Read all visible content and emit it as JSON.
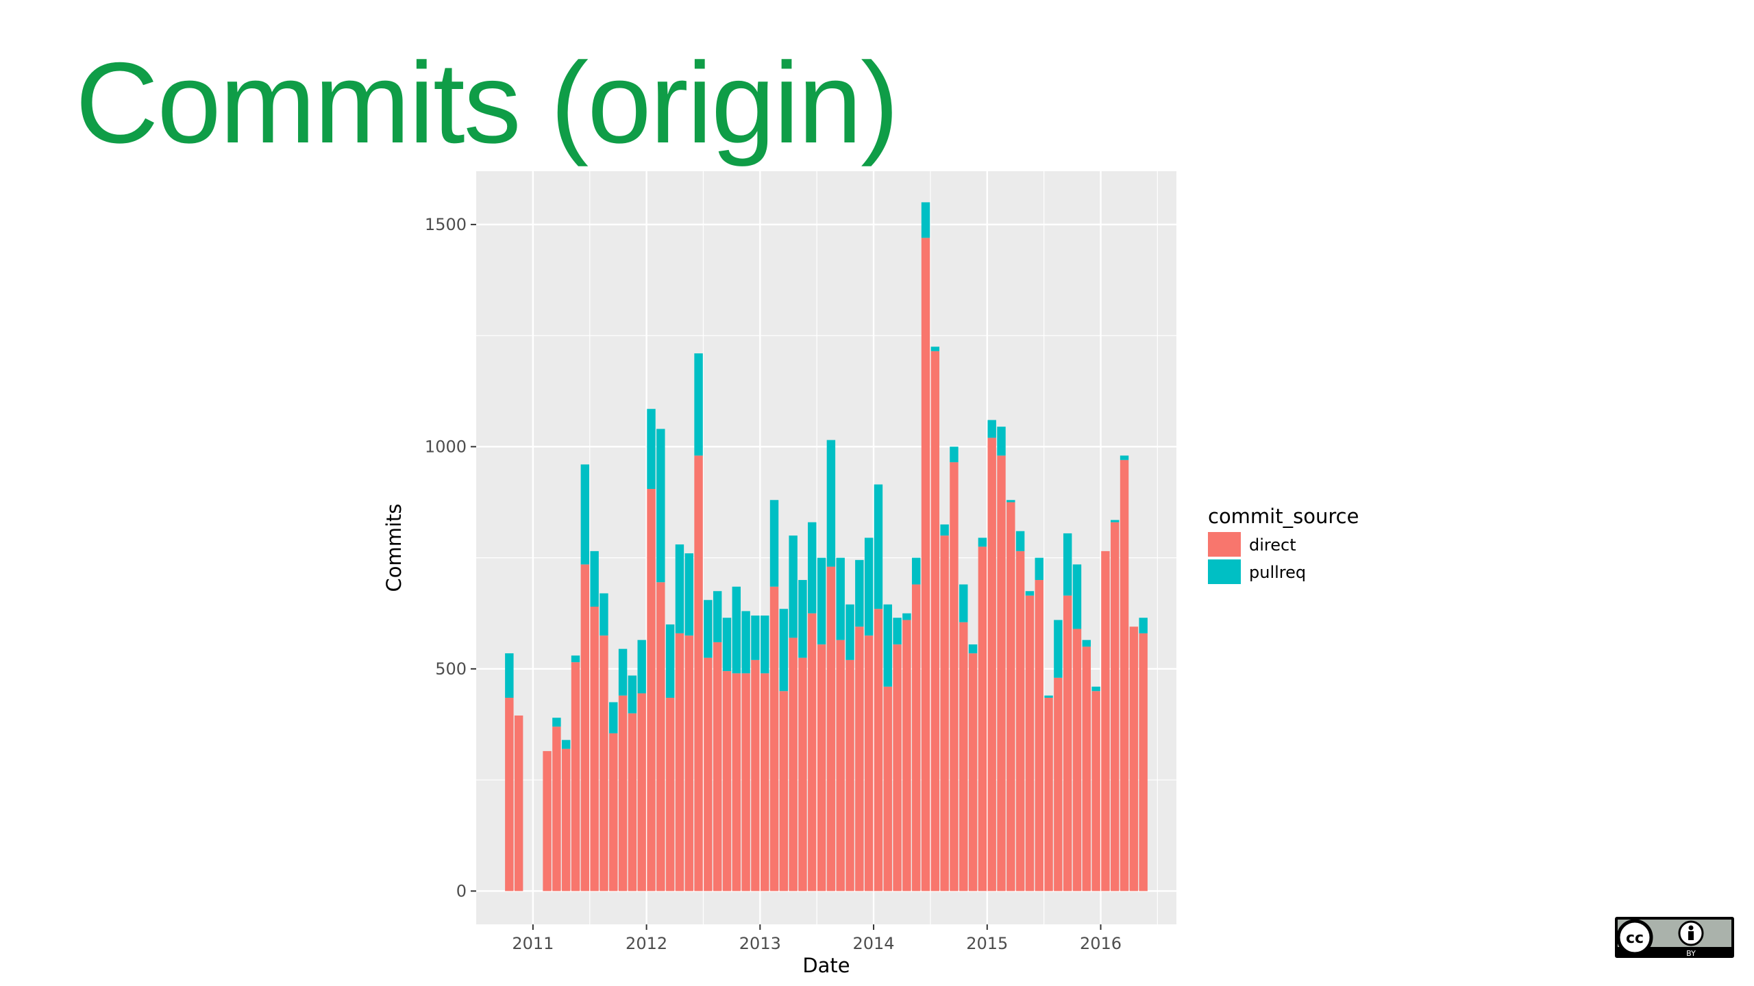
{
  "slide": {
    "title": "Commits (origin)",
    "title_color": "#0f9d47"
  },
  "chart_data": {
    "type": "bar",
    "stacked": true,
    "title": "",
    "xlabel": "Date",
    "ylabel": "Commits",
    "x_tick_labels": [
      "2011",
      "2012",
      "2013",
      "2014",
      "2015",
      "2016"
    ],
    "y_tick_labels": [
      "0",
      "500",
      "1000",
      "1500"
    ],
    "ylim": [
      -75,
      1620
    ],
    "xlim": [
      "2010-07",
      "2016-09"
    ],
    "grid": true,
    "panel_background": "#ebebeb",
    "legend": {
      "title": "commit_source",
      "position": "right"
    },
    "x": [
      "2010-10",
      "2010-11",
      "2011-02",
      "2011-03",
      "2011-04",
      "2011-05",
      "2011-06",
      "2011-07",
      "2011-08",
      "2011-09",
      "2011-10",
      "2011-11",
      "2011-12",
      "2012-01",
      "2012-02",
      "2012-03",
      "2012-04",
      "2012-05",
      "2012-06",
      "2012-07",
      "2012-08",
      "2012-09",
      "2012-10",
      "2012-11",
      "2012-12",
      "2013-01",
      "2013-02",
      "2013-03",
      "2013-04",
      "2013-05",
      "2013-06",
      "2013-07",
      "2013-08",
      "2013-09",
      "2013-10",
      "2013-11",
      "2013-12",
      "2014-01",
      "2014-02",
      "2014-03",
      "2014-04",
      "2014-05",
      "2014-06",
      "2014-07",
      "2014-08",
      "2014-09",
      "2014-10",
      "2014-11",
      "2014-12",
      "2015-01",
      "2015-02",
      "2015-03",
      "2015-04",
      "2015-05",
      "2015-06",
      "2015-07",
      "2015-08",
      "2015-09",
      "2015-10",
      "2015-11",
      "2015-12",
      "2016-01",
      "2016-02",
      "2016-03",
      "2016-04",
      "2016-05"
    ],
    "series": [
      {
        "name": "direct",
        "color": "#f8766d",
        "values": [
          435,
          395,
          315,
          370,
          320,
          515,
          735,
          640,
          575,
          355,
          440,
          400,
          445,
          905,
          695,
          435,
          580,
          575,
          980,
          525,
          560,
          495,
          490,
          490,
          520,
          490,
          685,
          450,
          570,
          525,
          625,
          555,
          730,
          565,
          520,
          595,
          575,
          635,
          460,
          555,
          610,
          690,
          1470,
          1215,
          800,
          965,
          605,
          535,
          775,
          1020,
          980,
          875,
          765,
          665,
          700,
          435,
          480,
          665,
          590,
          550,
          450,
          765,
          830,
          970,
          595,
          580
        ]
      },
      {
        "name": "pullreq",
        "color": "#00bfc4",
        "values": [
          100,
          0,
          0,
          20,
          20,
          15,
          225,
          125,
          95,
          70,
          105,
          85,
          120,
          180,
          345,
          165,
          200,
          185,
          230,
          130,
          115,
          120,
          195,
          140,
          100,
          130,
          195,
          185,
          230,
          175,
          205,
          195,
          285,
          185,
          125,
          150,
          220,
          280,
          185,
          60,
          15,
          60,
          80,
          10,
          25,
          35,
          85,
          20,
          20,
          40,
          65,
          5,
          45,
          10,
          50,
          5,
          130,
          140,
          145,
          15,
          10,
          0,
          5,
          10,
          0,
          35
        ]
      }
    ]
  },
  "license_badge": {
    "label": "BY",
    "icon": "cc-by-icon"
  }
}
